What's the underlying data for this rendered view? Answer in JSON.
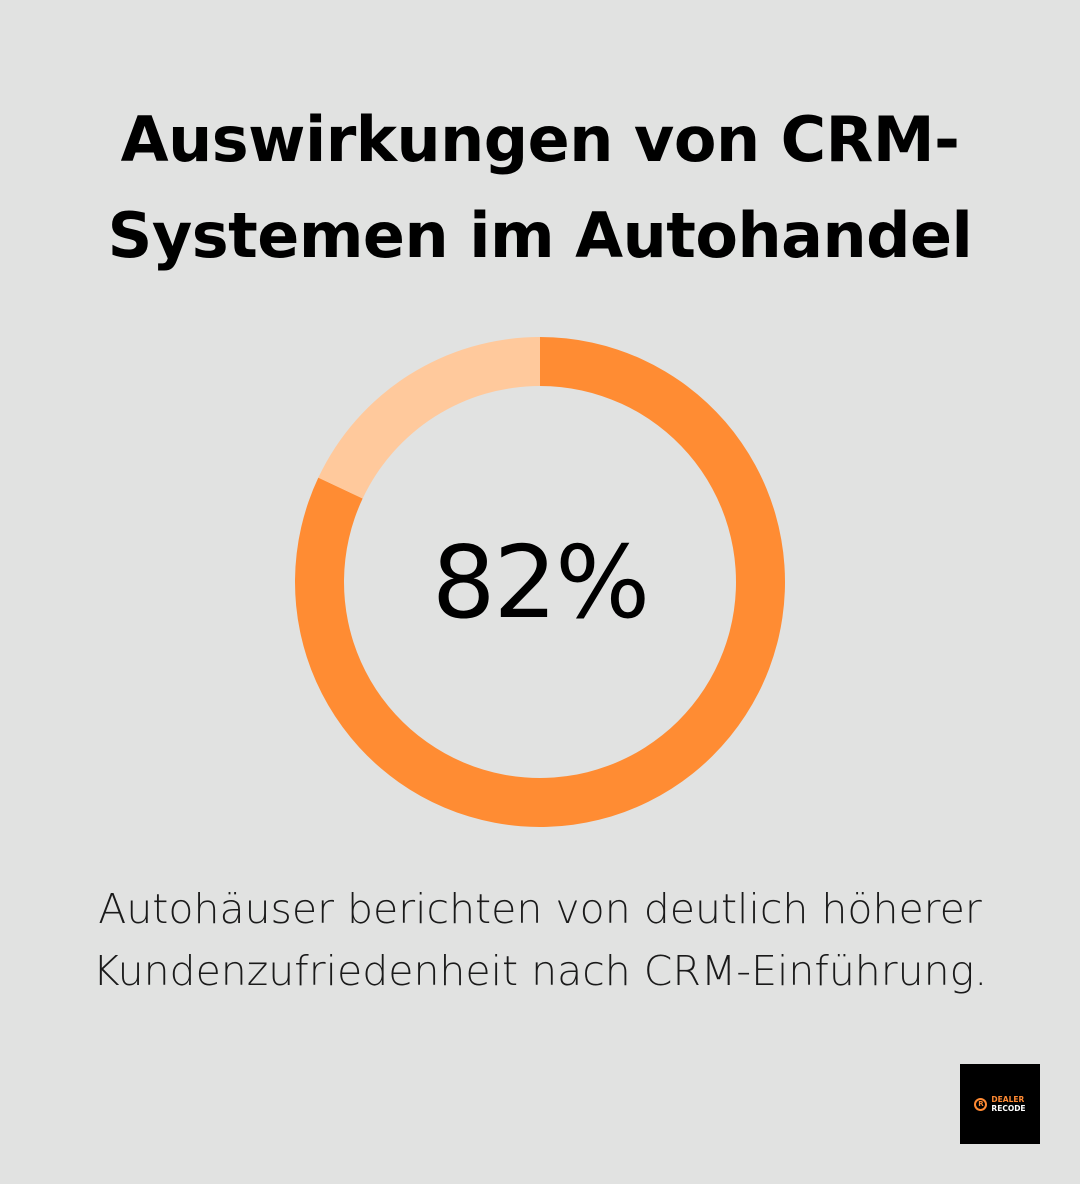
{
  "title": {
    "line1": "Auswirkungen von CRM-",
    "line2": "Systemen im Autohandel"
  },
  "chart_data": {
    "type": "pie",
    "variant": "donut",
    "value_label": "82%",
    "values": [
      82,
      18
    ],
    "colors": [
      "#ff8c33",
      "#ffc99c"
    ],
    "start": "top, clockwise"
  },
  "caption": {
    "line1": "Autohäuser berichten von deutlich höherer",
    "line2": "Kundenzufriedenheit nach CRM-Einführung."
  },
  "logo": {
    "mark": "R",
    "line1": "DEALER",
    "line2": "RECODE"
  },
  "colors": {
    "background": "#e1e2e1",
    "accent": "#ff8c33",
    "accent_light": "#ffc99c"
  }
}
